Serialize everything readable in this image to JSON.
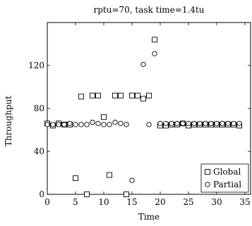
{
  "chart_data": {
    "type": "scatter",
    "title": "rptu=70, task time=1.4tu",
    "xlabel": "Time",
    "ylabel": "Throughput",
    "xlim": [
      0,
      36
    ],
    "ylim": [
      0,
      160
    ],
    "xticks": [
      0,
      5,
      10,
      15,
      20,
      25,
      30,
      35
    ],
    "yticks": [
      0,
      40,
      80,
      120
    ],
    "grid": false,
    "legend_position": "bottom-right",
    "series": [
      {
        "name": "Global",
        "marker": "square",
        "points": [
          [
            0,
            66
          ],
          [
            1,
            64
          ],
          [
            2,
            66
          ],
          [
            3,
            65
          ],
          [
            4,
            65
          ],
          [
            5,
            15
          ],
          [
            6,
            91
          ],
          [
            7,
            0
          ],
          [
            8,
            92
          ],
          [
            9,
            92
          ],
          [
            10,
            72
          ],
          [
            11,
            18
          ],
          [
            12,
            92
          ],
          [
            13,
            92
          ],
          [
            14,
            0
          ],
          [
            15,
            92
          ],
          [
            16,
            92
          ],
          [
            17,
            89
          ],
          [
            18,
            92
          ],
          [
            19,
            144
          ],
          [
            20,
            64
          ],
          [
            21,
            64
          ],
          [
            22,
            65
          ],
          [
            23,
            65
          ],
          [
            24,
            66
          ],
          [
            25,
            64
          ],
          [
            26,
            65
          ],
          [
            27,
            65
          ],
          [
            28,
            65
          ],
          [
            29,
            65
          ],
          [
            30,
            65
          ],
          [
            31,
            65
          ],
          [
            32,
            65
          ],
          [
            33,
            65
          ],
          [
            34,
            64
          ]
        ]
      },
      {
        "name": "Partial",
        "marker": "circle",
        "points": [
          [
            0,
            65
          ],
          [
            1,
            65
          ],
          [
            2,
            65
          ],
          [
            3,
            65
          ],
          [
            4,
            66
          ],
          [
            5,
            65
          ],
          [
            6,
            65
          ],
          [
            7,
            65
          ],
          [
            8,
            67
          ],
          [
            9,
            66
          ],
          [
            10,
            65
          ],
          [
            11,
            65
          ],
          [
            12,
            67
          ],
          [
            13,
            66
          ],
          [
            14,
            65
          ],
          [
            15,
            13
          ],
          [
            17,
            121
          ],
          [
            18,
            65
          ],
          [
            19,
            131
          ],
          [
            20,
            66
          ],
          [
            21,
            66
          ],
          [
            22,
            66
          ],
          [
            23,
            66
          ],
          [
            24,
            66
          ],
          [
            25,
            66
          ],
          [
            26,
            66
          ],
          [
            27,
            66
          ],
          [
            28,
            66
          ],
          [
            29,
            66
          ],
          [
            30,
            66
          ],
          [
            31,
            66
          ],
          [
            32,
            66
          ],
          [
            33,
            66
          ],
          [
            34,
            66
          ]
        ]
      }
    ]
  }
}
